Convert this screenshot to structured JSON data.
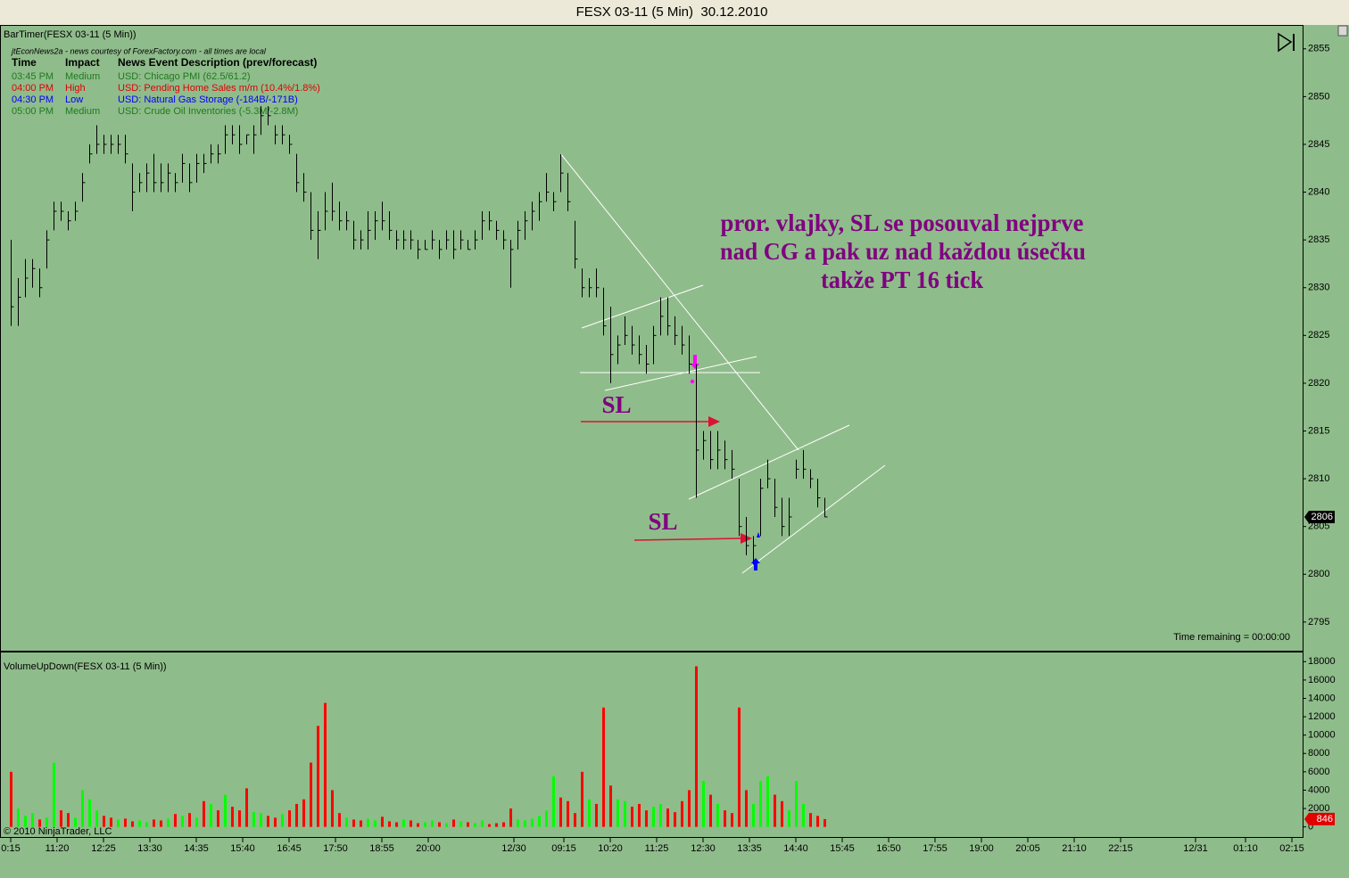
{
  "window": {
    "title": "FESX 03-11 (5 Min)  30.12.2010"
  },
  "chart_data": [
    {
      "type": "ohlc",
      "indicator": "BarTimer(FESX 03-11 (5 Min))",
      "status": "Time remaining = 00:00:00",
      "color": "#000000",
      "x": [
        0,
        2,
        4,
        6,
        8,
        10,
        12,
        14,
        16,
        18,
        20,
        22,
        24,
        26,
        28,
        30,
        32,
        34,
        36,
        38,
        40,
        42,
        44,
        46,
        48,
        50,
        52,
        54,
        56,
        58,
        60,
        62,
        64,
        66,
        68,
        70,
        72,
        74,
        76,
        78,
        80,
        82,
        84,
        86,
        88,
        90,
        92,
        94,
        96,
        98,
        100,
        102,
        104,
        106,
        108,
        110,
        112,
        114,
        116,
        118,
        120,
        122,
        124,
        126,
        128,
        130,
        132,
        134,
        136,
        138,
        140,
        142,
        144,
        146,
        148,
        150,
        152,
        154,
        156,
        158,
        160,
        162,
        164,
        166,
        168,
        170,
        172,
        174,
        176,
        178,
        180,
        182,
        184,
        186,
        188,
        190,
        192,
        194,
        196,
        198,
        200,
        202,
        204,
        206,
        208,
        210,
        212,
        214,
        216,
        218,
        220,
        222,
        224,
        226,
        228
      ],
      "high": [
        2835,
        2831,
        2833,
        2833,
        2832,
        2836,
        2839,
        2839,
        2838,
        2839,
        2842,
        2845,
        2847,
        2846,
        2846,
        2846,
        2846,
        2843,
        2842,
        2843,
        2844,
        2843,
        2843,
        2842,
        2844,
        2843,
        2844,
        2844,
        2845,
        2845,
        2847,
        2847,
        2847,
        2846,
        2847,
        2849,
        2849,
        2847,
        2847,
        2846,
        2844,
        2842,
        2840,
        2838,
        2840,
        2841,
        2839,
        2838,
        2837,
        2836,
        2838,
        2838,
        2839,
        2838,
        2836,
        2836,
        2836,
        2835,
        2835,
        2836,
        2835,
        2836,
        2836,
        2836,
        2835,
        2836,
        2838,
        2838,
        2837,
        2836,
        2835,
        2837,
        2838,
        2839,
        2840,
        2842,
        2840,
        2844,
        2842,
        2837,
        2832,
        2831,
        2832,
        2830,
        2828,
        2825,
        2827,
        2826,
        2825,
        2824,
        2826,
        2829,
        2829,
        2827,
        2826,
        2825,
        2822,
        2815,
        2815,
        2815,
        2814,
        2813,
        2810,
        2806,
        2804,
        2810,
        2812,
        2810,
        2808,
        2808,
        2812,
        2813,
        2811,
        2810,
        2808
      ],
      "low": [
        2826,
        2826,
        2829,
        2830,
        2829,
        2832,
        2836,
        2837,
        2836,
        2837,
        2839,
        2843,
        2844,
        2844,
        2844,
        2844,
        2843,
        2838,
        2840,
        2840,
        2840,
        2840,
        2840,
        2840,
        2841,
        2840,
        2841,
        2842,
        2843,
        2843,
        2844,
        2845,
        2844,
        2845,
        2844,
        2846,
        2847,
        2845,
        2845,
        2844,
        2840,
        2839,
        2835,
        2833,
        2836,
        2837,
        2836,
        2836,
        2834,
        2834,
        2834,
        2835,
        2836,
        2835,
        2834,
        2834,
        2834,
        2833,
        2834,
        2834,
        2833,
        2834,
        2833,
        2834,
        2834,
        2834,
        2835,
        2836,
        2835,
        2834,
        2830,
        2834,
        2835,
        2836,
        2837,
        2839,
        2838,
        2840,
        2838,
        2832,
        2829,
        2829,
        2829,
        2825,
        2820,
        2822,
        2824,
        2823,
        2822,
        2821,
        2822,
        2825,
        2825,
        2824,
        2823,
        2821,
        2808,
        2812,
        2811,
        2811,
        2811,
        2810,
        2804,
        2802,
        2801,
        2804,
        2809,
        2806,
        2804,
        2804,
        2810,
        2810,
        2809,
        2807,
        2806
      ],
      "close": [
        2828,
        2829,
        2831,
        2832,
        2830,
        2835,
        2838,
        2838,
        2837,
        2838,
        2841,
        2844,
        2845,
        2845,
        2845,
        2845,
        2844,
        2840,
        2841,
        2842,
        2841,
        2841,
        2842,
        2841,
        2843,
        2841,
        2843,
        2843,
        2844,
        2844,
        2846,
        2846,
        2845,
        2846,
        2846,
        2848,
        2848,
        2846,
        2846,
        2845,
        2841,
        2840,
        2836,
        2836,
        2838,
        2838,
        2837,
        2837,
        2835,
        2835,
        2836,
        2837,
        2837,
        2836,
        2835,
        2835,
        2835,
        2834,
        2834,
        2835,
        2834,
        2835,
        2834,
        2835,
        2834,
        2835,
        2837,
        2837,
        2836,
        2835,
        2834,
        2836,
        2837,
        2838,
        2839,
        2840,
        2839,
        2842,
        2839,
        2833,
        2830,
        2830,
        2830,
        2826,
        2823,
        2824,
        2825,
        2824,
        2823,
        2822,
        2825,
        2827,
        2826,
        2825,
        2824,
        2822,
        2813,
        2814,
        2812,
        2813,
        2812,
        2811,
        2805,
        2803,
        2803,
        2809,
        2810,
        2807,
        2805,
        2806,
        2811,
        2811,
        2810,
        2808,
        2806
      ],
      "ylim": [
        2792,
        2857.5
      ],
      "yticks": [
        2795,
        2800,
        2805,
        2810,
        2815,
        2820,
        2825,
        2830,
        2835,
        2840,
        2845,
        2850,
        2855
      ],
      "xlim": [
        -3,
        362
      ],
      "xticks": [
        {
          "value": 0,
          "label": "0:15"
        },
        {
          "value": 13,
          "label": "11:20"
        },
        {
          "value": 26,
          "label": "12:25"
        },
        {
          "value": 39,
          "label": "13:30"
        },
        {
          "value": 52,
          "label": "14:35"
        },
        {
          "value": 65,
          "label": "15:40"
        },
        {
          "value": 78,
          "label": "16:45"
        },
        {
          "value": 91,
          "label": "17:50"
        },
        {
          "value": 104,
          "label": "18:55"
        },
        {
          "value": 117,
          "label": "20:00"
        },
        {
          "value": 141,
          "label": "12/30"
        },
        {
          "value": 155,
          "label": "09:15"
        },
        {
          "value": 168,
          "label": "10:20"
        },
        {
          "value": 181,
          "label": "11:25"
        },
        {
          "value": 194,
          "label": "12:30"
        },
        {
          "value": 207,
          "label": "13:35"
        },
        {
          "value": 220,
          "label": "14:40"
        },
        {
          "value": 233,
          "label": "15:45"
        },
        {
          "value": 246,
          "label": "16:50"
        },
        {
          "value": 259,
          "label": "17:55"
        },
        {
          "value": 272,
          "label": "19:00"
        },
        {
          "value": 285,
          "label": "20:05"
        },
        {
          "value": 298,
          "label": "21:10"
        },
        {
          "value": 311,
          "label": "22:15"
        },
        {
          "value": 332,
          "label": "12/31"
        },
        {
          "value": 346,
          "label": "01:10"
        },
        {
          "value": 359,
          "label": "02:15"
        }
      ],
      "last_value": 2806
    },
    {
      "type": "bar",
      "indicator": "VolumeUpDown(FESX 03-11 (5 Min))",
      "x": [
        0,
        2,
        4,
        6,
        8,
        10,
        12,
        14,
        16,
        18,
        20,
        22,
        24,
        26,
        28,
        30,
        32,
        34,
        36,
        38,
        40,
        42,
        44,
        46,
        48,
        50,
        52,
        54,
        56,
        58,
        60,
        62,
        64,
        66,
        68,
        70,
        72,
        74,
        76,
        78,
        80,
        82,
        84,
        86,
        88,
        90,
        92,
        94,
        96,
        98,
        100,
        102,
        104,
        106,
        108,
        110,
        112,
        114,
        116,
        118,
        120,
        122,
        124,
        126,
        128,
        130,
        132,
        134,
        136,
        138,
        140,
        142,
        144,
        146,
        148,
        150,
        152,
        154,
        156,
        158,
        160,
        162,
        164,
        166,
        168,
        170,
        172,
        174,
        176,
        178,
        180,
        182,
        184,
        186,
        188,
        190,
        192,
        194,
        196,
        198,
        200,
        202,
        204,
        206,
        208,
        210,
        212,
        214,
        216,
        218,
        220,
        222,
        224,
        226,
        228
      ],
      "values": [
        6000,
        2000,
        1200,
        1500,
        800,
        1000,
        7000,
        1800,
        1500,
        1000,
        4000,
        3000,
        1800,
        1200,
        1000,
        800,
        900,
        600,
        700,
        500,
        800,
        700,
        900,
        1400,
        1200,
        1500,
        1000,
        2800,
        2500,
        1800,
        3500,
        2200,
        1800,
        4200,
        1600,
        1500,
        1200,
        1000,
        1400,
        1800,
        2500,
        3000,
        7000,
        11000,
        13500,
        4000,
        1500,
        1000,
        800,
        700,
        900,
        700,
        1100,
        600,
        500,
        800,
        700,
        400,
        500,
        700,
        500,
        400,
        800,
        600,
        500,
        400,
        700,
        300,
        400,
        500,
        2000,
        800,
        700,
        900,
        1200,
        1800,
        5500,
        3200,
        2800,
        1500,
        6000,
        3000,
        2500,
        13000,
        4500,
        3000,
        2800,
        2200,
        2500,
        1800,
        2200,
        2500,
        2000,
        1600,
        2800,
        4000,
        17500,
        5000,
        3500,
        2500,
        1800,
        1500,
        13000,
        4000,
        2500,
        5000,
        5500,
        3500,
        2800,
        1800,
        5000,
        2500,
        1500,
        1200,
        846
      ],
      "colors": [
        "red",
        "lime",
        "lime",
        "lime",
        "red",
        "lime",
        "lime",
        "red",
        "red",
        "lime",
        "lime",
        "lime",
        "lime",
        "red",
        "red",
        "lime",
        "red",
        "red",
        "lime",
        "lime",
        "red",
        "red",
        "lime",
        "red",
        "lime",
        "red",
        "lime",
        "red",
        "lime",
        "red",
        "lime",
        "red",
        "red",
        "red",
        "lime",
        "lime",
        "red",
        "red",
        "lime",
        "red",
        "red",
        "red",
        "red",
        "red",
        "red",
        "red",
        "red",
        "lime",
        "red",
        "red",
        "lime",
        "lime",
        "red",
        "red",
        "red",
        "lime",
        "red",
        "red",
        "lime",
        "lime",
        "red",
        "lime",
        "red",
        "lime",
        "red",
        "lime",
        "lime",
        "red",
        "red",
        "red",
        "red",
        "lime",
        "lime",
        "lime",
        "lime",
        "lime",
        "lime",
        "red",
        "red",
        "red",
        "red",
        "lime",
        "red",
        "red",
        "red",
        "lime",
        "lime",
        "red",
        "red",
        "red",
        "lime",
        "lime",
        "red",
        "red",
        "red",
        "red",
        "red",
        "lime",
        "red",
        "lime",
        "red",
        "red",
        "red",
        "red",
        "lime",
        "lime",
        "lime",
        "red",
        "red",
        "lime",
        "lime",
        "lime",
        "red",
        "red",
        "red"
      ],
      "ylim": [
        -1200,
        19000
      ],
      "yticks": [
        0,
        2000,
        4000,
        6000,
        8000,
        10000,
        12000,
        14000,
        16000,
        18000
      ],
      "last_value": 846
    }
  ],
  "news": {
    "source": "jtEconNews2a - news courtesy of ForexFactory.com - all times are local",
    "columns": [
      "Time",
      "Impact",
      "News Event Description (prev/forecast)"
    ],
    "rows": [
      {
        "time": "03:45 PM",
        "impact": "Medium",
        "description": "USD: Chicago PMI (62.5/61.2)",
        "color": "#1f7a1f"
      },
      {
        "time": "04:00 PM",
        "impact": "High",
        "description": "USD: Pending Home Sales m/m (10.4%/1.8%)",
        "color": "#e00000"
      },
      {
        "time": "04:30 PM",
        "impact": "Low",
        "description": "USD: Natural Gas Storage (-184B/-171B)",
        "color": "#0000ff"
      },
      {
        "time": "05:00 PM",
        "impact": "Medium",
        "description": "USD: Crude Oil Inventories (-5.3M/-2.8M)",
        "color": "#1f7a1f"
      }
    ]
  },
  "annotations": {
    "note": [
      "pror. vlajky, SL se posouval nejprve",
      "nad CG a pak uz nad každou úsečku",
      "takže PT 16 tick"
    ],
    "stop_labels": [
      "SL",
      "SL"
    ]
  },
  "copyright": "© 2010 NinjaTrader, LLC"
}
